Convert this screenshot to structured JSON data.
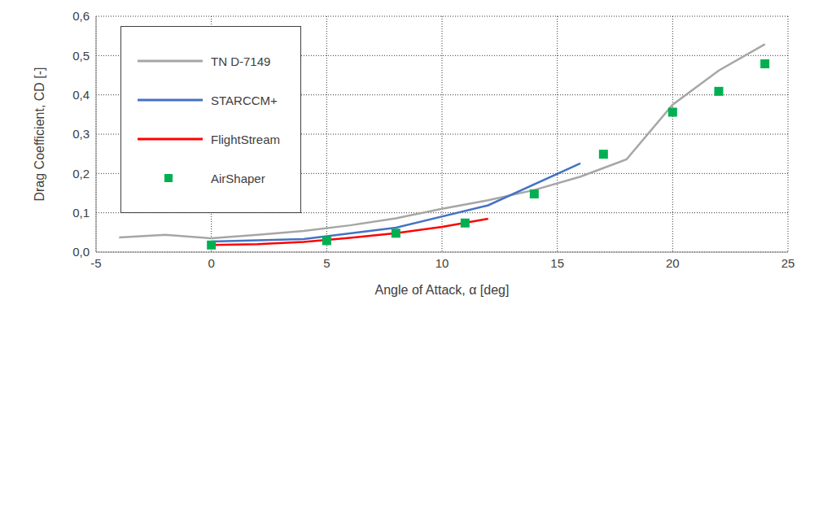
{
  "chart_data": {
    "type": "line",
    "x_label": "Angle of Attack, α [deg]",
    "y_label": "Drag Coefficient, CD [-]",
    "xlim": [
      -5,
      25
    ],
    "xticks": [
      -5,
      0,
      5,
      10,
      15,
      20,
      25
    ],
    "ylim": [
      0,
      0.6
    ],
    "yticks": [
      {
        "value": 0,
        "label": "0,0"
      },
      {
        "value": 0.1,
        "label": "0,1"
      },
      {
        "value": 0.2,
        "label": "0,2"
      },
      {
        "value": 0.3,
        "label": "0,3"
      },
      {
        "value": 0.4,
        "label": "0,4"
      },
      {
        "value": 0.5,
        "label": "0,5"
      },
      {
        "value": 0.6,
        "label": "0,6"
      }
    ],
    "grid": true,
    "legend": "upper left",
    "series": [
      {
        "name": "TN D-7149",
        "color": "#a6a6a6",
        "type": "line",
        "x": [
          -4,
          -2,
          0,
          2,
          4,
          6,
          8,
          10,
          12,
          14,
          16,
          18,
          20,
          22,
          24
        ],
        "values": [
          0.037,
          0.044,
          0.035,
          0.044,
          0.054,
          0.068,
          0.086,
          0.11,
          0.132,
          0.158,
          0.192,
          0.236,
          0.375,
          0.462,
          0.529
        ]
      },
      {
        "name": "STARCCM+",
        "color": "#4472c4",
        "type": "line",
        "x": [
          0,
          4,
          8,
          12,
          16
        ],
        "values": [
          0.027,
          0.033,
          0.062,
          0.119,
          0.226
        ]
      },
      {
        "name": "FlightStream",
        "color": "#ff0000",
        "type": "line",
        "x": [
          0,
          2,
          4,
          6,
          8,
          10,
          12
        ],
        "values": [
          0.018,
          0.02,
          0.026,
          0.036,
          0.048,
          0.064,
          0.085
        ]
      },
      {
        "name": "AirShaper",
        "color": "#00b050",
        "type": "scatter",
        "marker": "square",
        "x": [
          0,
          5,
          8,
          11,
          14,
          17,
          20,
          22,
          24
        ],
        "values": [
          0.018,
          0.029,
          0.048,
          0.074,
          0.148,
          0.249,
          0.356,
          0.409,
          0.479
        ]
      }
    ]
  }
}
